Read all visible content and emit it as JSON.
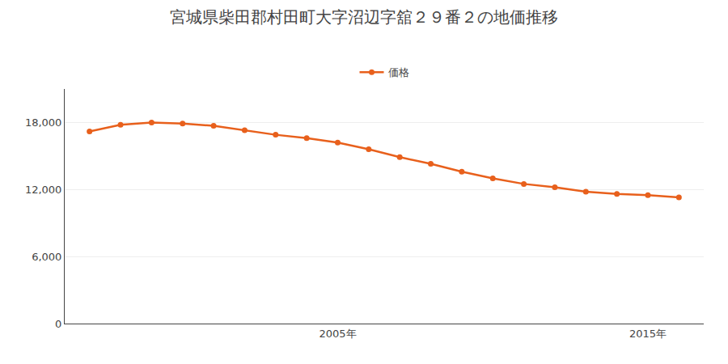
{
  "chart_data": {
    "type": "line",
    "title": "宮城県柴田郡村田町大字沼辺字舘２９番２の地価推移",
    "x": [
      1997,
      1998,
      1999,
      2000,
      2001,
      2002,
      2003,
      2004,
      2005,
      2006,
      2007,
      2008,
      2009,
      2010,
      2011,
      2012,
      2013,
      2014,
      2015,
      2016
    ],
    "series": [
      {
        "name": "価格",
        "color": "#e8601c",
        "marker": "circle",
        "values": [
          17200,
          17800,
          18000,
          17900,
          17700,
          17300,
          16900,
          16600,
          16200,
          15600,
          14900,
          14300,
          13600,
          13000,
          12500,
          12200,
          11800,
          11600,
          11500,
          11300
        ]
      }
    ],
    "xlim": [
      1996.2,
      2016.8
    ],
    "xticks": [
      {
        "value": 2005,
        "label": "2005年"
      },
      {
        "value": 2015,
        "label": "2015年"
      }
    ],
    "ylim": [
      0,
      21000
    ],
    "yticks": [
      0,
      {
        "value": 6000,
        "label": "6,000"
      },
      {
        "value": 12000,
        "label": "12,000"
      },
      {
        "value": 18000,
        "label": "18,000"
      }
    ],
    "grid": "y",
    "legend": "top"
  }
}
